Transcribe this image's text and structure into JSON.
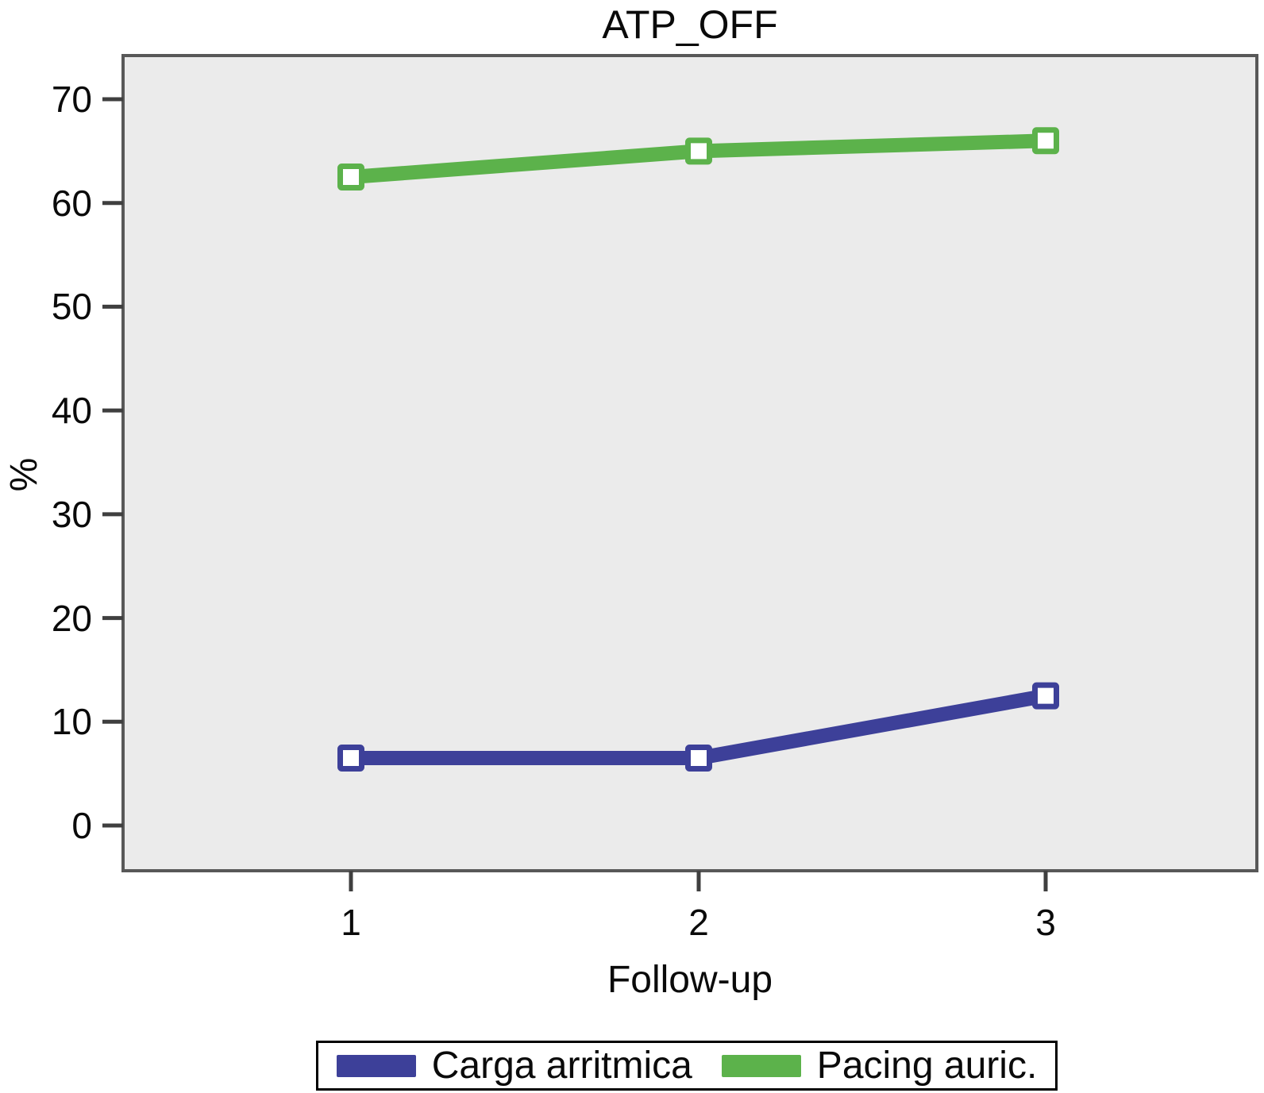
{
  "chart_data": {
    "type": "line",
    "title": "ATP_OFF",
    "xlabel": "Follow-up",
    "ylabel": "%",
    "categories": [
      "1",
      "2",
      "3"
    ],
    "series": [
      {
        "name": "Carga arritmica",
        "color": "#3d4099",
        "values": [
          6.5,
          6.5,
          12.5
        ]
      },
      {
        "name": "Pacing auric.",
        "color": "#5cb24b",
        "values": [
          62.5,
          65,
          66
        ]
      }
    ],
    "yticks": [
      0,
      10,
      20,
      30,
      40,
      50,
      60,
      70
    ],
    "ylim": [
      0,
      70
    ],
    "grid": false,
    "legend_position": "bottom",
    "marker": "square-white-fill",
    "line_style": "solid-thick",
    "plot_bg": "#ebebeb",
    "frame_color": "#585858",
    "axis_color": "#3f3f3f",
    "text_color": "#0a0a0a"
  }
}
